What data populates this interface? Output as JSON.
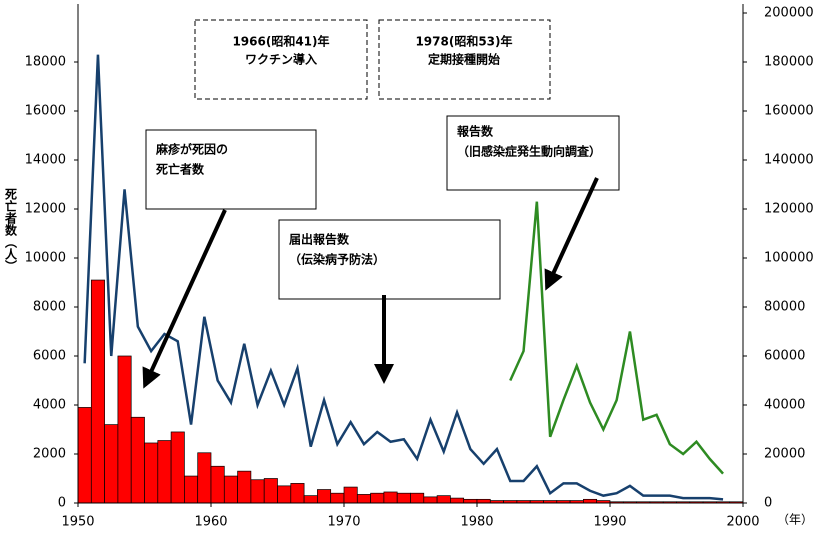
{
  "chart_data": {
    "type": "bar-line",
    "ylabel": "死亡者数（人）",
    "xlabel": "（年）",
    "xlim": [
      1950,
      2000
    ],
    "xticks": [
      1950,
      1960,
      1970,
      1980,
      1990,
      2000
    ],
    "ylim": [
      0,
      20000
    ],
    "yticks": [
      0,
      2000,
      4000,
      6000,
      8000,
      10000,
      12000,
      14000,
      16000,
      18000
    ],
    "y2lim": [
      0,
      200000
    ],
    "y2ticks": [
      0,
      20000,
      40000,
      60000,
      80000,
      100000,
      120000,
      140000,
      160000,
      180000,
      200000
    ],
    "annotations": [
      {
        "lines": [
          "1966(昭和41)年",
          "ワクチン導入"
        ]
      },
      {
        "lines": [
          "1978(昭和53)年",
          "定期接種開始"
        ]
      },
      {
        "lines": [
          "麻疹が死因の",
          "死亡者数"
        ]
      },
      {
        "lines": [
          "届出報告数",
          "（伝染病予防法）"
        ]
      },
      {
        "lines": [
          "報告数",
          "（旧感染症発生動向調査）"
        ]
      }
    ],
    "series": [
      {
        "kind": "bar",
        "color": "#ff0000",
        "x": [
          1950,
          1951,
          1952,
          1953,
          1954,
          1955,
          1956,
          1957,
          1958,
          1959,
          1960,
          1961,
          1962,
          1963,
          1964,
          1965,
          1966,
          1967,
          1968,
          1969,
          1970,
          1971,
          1972,
          1973,
          1974,
          1975,
          1976,
          1977,
          1978,
          1979,
          1980,
          1981,
          1982,
          1983,
          1984,
          1985,
          1986,
          1987,
          1988,
          1989,
          1990,
          1991,
          1992,
          1993,
          1994,
          1995,
          1996,
          1997,
          1998,
          1999
        ],
        "values": [
          3900,
          9100,
          3200,
          6000,
          3500,
          2450,
          2550,
          2900,
          1100,
          2050,
          1500,
          1100,
          1300,
          950,
          1000,
          700,
          800,
          300,
          550,
          400,
          650,
          350,
          400,
          450,
          400,
          400,
          250,
          300,
          200,
          150,
          150,
          100,
          100,
          100,
          100,
          100,
          100,
          100,
          150,
          100,
          50,
          50,
          50,
          50,
          50,
          50,
          50,
          50,
          50,
          50
        ]
      },
      {
        "kind": "line",
        "axis": "y2",
        "color": "#17406d",
        "x": [
          1950,
          1951,
          1952,
          1953,
          1954,
          1955,
          1956,
          1957,
          1958,
          1959,
          1960,
          1961,
          1962,
          1963,
          1964,
          1965,
          1966,
          1967,
          1968,
          1969,
          1970,
          1971,
          1972,
          1973,
          1974,
          1975,
          1976,
          1977,
          1978,
          1979,
          1980,
          1981,
          1982,
          1983,
          1984,
          1985,
          1986,
          1987,
          1988,
          1989,
          1990,
          1991,
          1992,
          1993,
          1994,
          1995,
          1996,
          1997,
          1998
        ],
        "values": [
          57000,
          183000,
          60000,
          128000,
          72000,
          62000,
          69000,
          66000,
          32000,
          76000,
          50000,
          41000,
          65000,
          40000,
          54000,
          40000,
          55000,
          23000,
          42000,
          24000,
          33000,
          24000,
          29000,
          25000,
          26000,
          18000,
          34000,
          21000,
          37000,
          22000,
          16000,
          22000,
          9000,
          9000,
          15000,
          4000,
          8000,
          8000,
          5000,
          3000,
          4000,
          7000,
          3000,
          3000,
          3000,
          2000,
          2000,
          2000,
          1500
        ]
      },
      {
        "kind": "line",
        "axis": "y2",
        "color": "#2e8b22",
        "x": [
          1982,
          1983,
          1984,
          1985,
          1986,
          1987,
          1988,
          1989,
          1990,
          1991,
          1992,
          1993,
          1994,
          1995,
          1996,
          1997,
          1998
        ],
        "values": [
          50000,
          62000,
          123000,
          27000,
          42000,
          56000,
          41000,
          30000,
          42000,
          70000,
          34000,
          36000,
          24000,
          20000,
          25000,
          18000,
          12000
        ]
      }
    ]
  }
}
